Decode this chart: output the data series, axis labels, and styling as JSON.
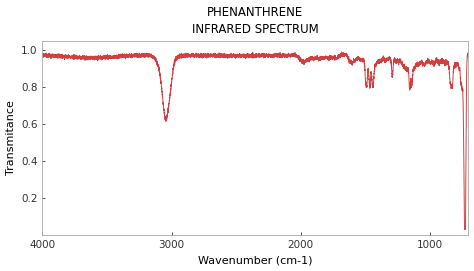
{
  "title": "PHENANTHRENE\nINFRARED SPECTRUM",
  "xlabel": "Wavenumber (cm-1)",
  "ylabel": "Transmitance",
  "xlim": [
    4000,
    700
  ],
  "ylim": [
    0.0,
    1.05
  ],
  "line_color": "#d04040",
  "background_color": "#ffffff",
  "yticks": [
    0.2,
    0.4,
    0.6,
    0.8,
    1.0
  ],
  "xticks": [
    4000,
    3000,
    2000,
    1000
  ]
}
